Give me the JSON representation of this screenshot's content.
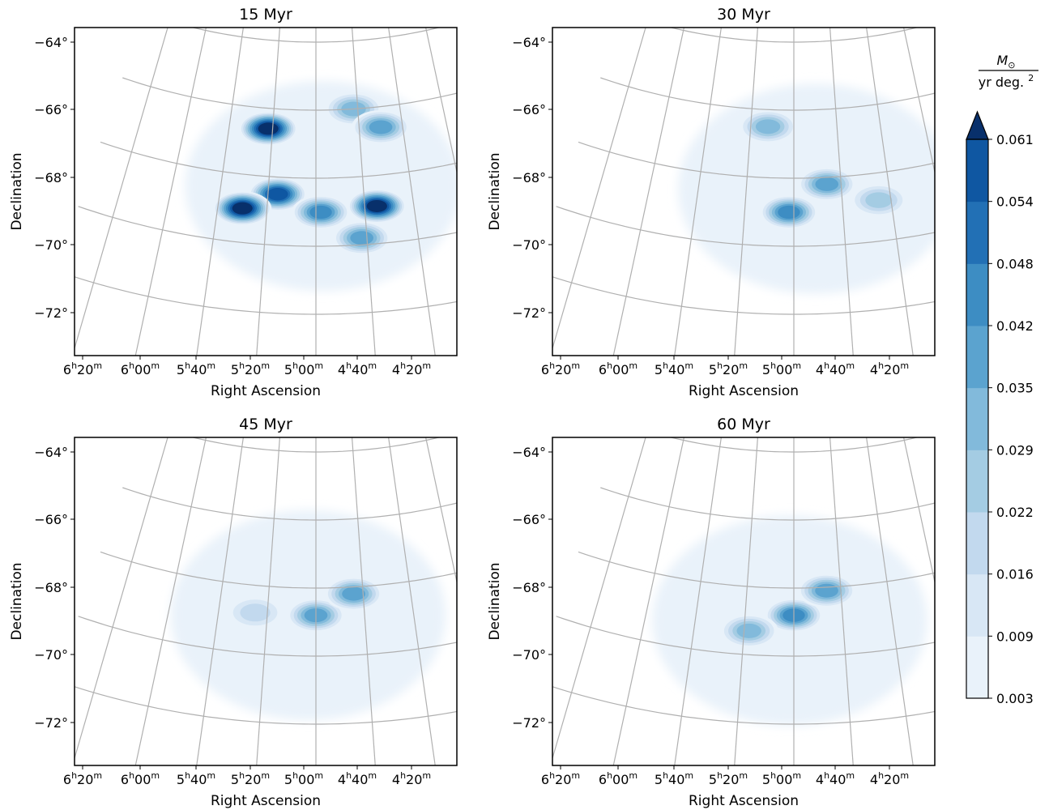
{
  "chart_data": [
    {
      "type": "heatmap",
      "title": "15 Myr",
      "xlabel": "Right Ascension",
      "ylabel": "Declination",
      "x_ticks": [
        "6h20m",
        "6h00m",
        "5h40m",
        "5h20m",
        "5h00m",
        "4h40m",
        "4h20m"
      ],
      "y_ticks": [
        "−64°",
        "−66°",
        "−68°",
        "−70°",
        "−72°"
      ],
      "grid": true,
      "peaks": [
        {
          "ra": "5h42m",
          "dec": -66.6,
          "value": 0.061
        },
        {
          "ra": "5h36m",
          "dec": -68.5,
          "value": 0.058
        },
        {
          "ra": "5h50m",
          "dec": -69.0,
          "value": 0.061
        },
        {
          "ra": "4h55m",
          "dec": -68.9,
          "value": 0.061
        },
        {
          "ra": "5h18m",
          "dec": -69.0,
          "value": 0.045
        },
        {
          "ra": "5h02m",
          "dec": -66.0,
          "value": 0.03
        },
        {
          "ra": "4h50m",
          "dec": -66.6,
          "value": 0.035
        },
        {
          "ra": "5h02m",
          "dec": -69.8,
          "value": 0.035
        }
      ]
    },
    {
      "type": "heatmap",
      "title": "30 Myr",
      "xlabel": "Right Ascension",
      "ylabel": "Declination",
      "x_ticks": [
        "6h20m",
        "6h00m",
        "5h40m",
        "5h20m",
        "5h00m",
        "4h40m",
        "4h20m"
      ],
      "y_ticks": [
        "−64°",
        "−66°",
        "−68°",
        "−70°",
        "−72°"
      ],
      "grid": true,
      "peaks": [
        {
          "ra": "5h22m",
          "dec": -69.0,
          "value": 0.045
        },
        {
          "ra": "5h06m",
          "dec": -68.2,
          "value": 0.04
        },
        {
          "ra": "5h32m",
          "dec": -66.5,
          "value": 0.03
        },
        {
          "ra": "4h45m",
          "dec": -68.8,
          "value": 0.028
        }
      ]
    },
    {
      "type": "heatmap",
      "title": "45 Myr",
      "xlabel": "Right Ascension",
      "ylabel": "Declination",
      "x_ticks": [
        "6h20m",
        "6h00m",
        "5h40m",
        "5h20m",
        "5h00m",
        "4h40m",
        "4h20m"
      ],
      "y_ticks": [
        "−64°",
        "−66°",
        "−68°",
        "−70°",
        "−72°"
      ],
      "grid": true,
      "peaks": [
        {
          "ra": "5h20m",
          "dec": -68.8,
          "value": 0.04
        },
        {
          "ra": "5h04m",
          "dec": -68.2,
          "value": 0.035
        },
        {
          "ra": "5h45m",
          "dec": -68.8,
          "value": 0.018
        }
      ]
    },
    {
      "type": "heatmap",
      "title": "60 Myr",
      "xlabel": "Right Ascension",
      "ylabel": "Declination",
      "x_ticks": [
        "6h20m",
        "6h00m",
        "5h40m",
        "5h20m",
        "5h00m",
        "4h40m",
        "4h20m"
      ],
      "y_ticks": [
        "−64°",
        "−66°",
        "−68°",
        "−70°",
        "−72°"
      ],
      "grid": true,
      "peaks": [
        {
          "ra": "5h20m",
          "dec": -68.8,
          "value": 0.045
        },
        {
          "ra": "5h06m",
          "dec": -68.1,
          "value": 0.04
        },
        {
          "ra": "5h38m",
          "dec": -69.3,
          "value": 0.03
        }
      ]
    }
  ],
  "colorbar": {
    "label_numerator": "M",
    "label_numerator_sub": "⊙",
    "label_denominator": "yr deg.",
    "label_denominator_sup": "2",
    "ticks": [
      "0.003",
      "0.009",
      "0.016",
      "0.022",
      "0.029",
      "0.035",
      "0.042",
      "0.048",
      "0.054",
      "0.061"
    ],
    "levels": [
      0.003,
      0.009,
      0.016,
      0.022,
      0.029,
      0.035,
      0.042,
      0.048,
      0.054,
      0.061
    ],
    "colors": [
      "#e9f2fa",
      "#d8e7f5",
      "#c2d9ee",
      "#a4cce3",
      "#82badb",
      "#5ba3cf",
      "#3d8dc3",
      "#2270b5",
      "#0f57a2",
      "#08306b"
    ],
    "extend": "max"
  },
  "style": {
    "grid_color": "#b0b0b0",
    "axis_color": "#000000"
  }
}
